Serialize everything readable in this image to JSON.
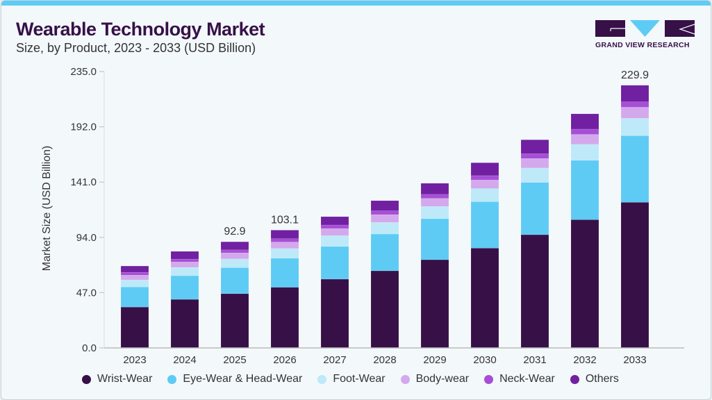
{
  "header": {
    "title": "Wearable Technology Market",
    "subtitle": "Size, by Product, 2023 - 2033 (USD Billion)",
    "logo_text": "GRAND VIEW RESEARCH"
  },
  "colors": {
    "accent": "#5ecbf5",
    "title": "#371047"
  },
  "chart_data": {
    "type": "bar",
    "stacked": true,
    "title": "Wearable Technology Market",
    "subtitle": "Size, by Product, 2023 - 2033 (USD Billion)",
    "xlabel": "",
    "ylabel": "Market Size (USD Billion)",
    "ylim": [
      0,
      235
    ],
    "yticks": [
      "0.0",
      "47.0",
      "94.0",
      "141.0",
      "192.0",
      "235.0"
    ],
    "grid": false,
    "legend_position": "bottom",
    "categories": [
      "2023",
      "2024",
      "2025",
      "2026",
      "2027",
      "2028",
      "2029",
      "2030",
      "2031",
      "2032",
      "2033"
    ],
    "series": [
      {
        "name": "Wrist-Wear",
        "color": "#371047",
        "values": [
          35.8,
          42.5,
          47.5,
          53.1,
          60.2,
          67.5,
          77.2,
          87.4,
          99.1,
          112.3,
          127.5
        ]
      },
      {
        "name": "Eye-Wear & Head-Wear",
        "color": "#5ecbf5",
        "values": [
          17.6,
          20.7,
          22.7,
          25.4,
          28.6,
          32.2,
          35.9,
          40.6,
          45.8,
          51.9,
          58.3
        ]
      },
      {
        "name": "Foot-Wear",
        "color": "#bde9f9",
        "values": [
          6.1,
          7.3,
          7.7,
          8.5,
          9.5,
          10.2,
          10.8,
          11.5,
          12.6,
          14.0,
          15.2
        ]
      },
      {
        "name": "Body-wear",
        "color": "#d4a9ec",
        "values": [
          4.2,
          4.8,
          5.3,
          5.7,
          6.2,
          6.8,
          7.0,
          7.5,
          8.3,
          8.7,
          9.7
        ]
      },
      {
        "name": "Neck-Wear",
        "color": "#a64fd6",
        "values": [
          2.5,
          2.5,
          2.6,
          2.9,
          3.1,
          3.4,
          3.5,
          3.8,
          4.2,
          4.6,
          4.8
        ]
      },
      {
        "name": "Others",
        "color": "#7020a0",
        "values": [
          5.5,
          6.7,
          7.1,
          7.5,
          7.3,
          8.8,
          9.7,
          11.3,
          12.2,
          13.4,
          14.4
        ]
      }
    ],
    "annotations": [
      {
        "category": "2025",
        "text": "92.9"
      },
      {
        "category": "2026",
        "text": "103.1"
      },
      {
        "category": "2033",
        "text": "229.9"
      }
    ]
  }
}
